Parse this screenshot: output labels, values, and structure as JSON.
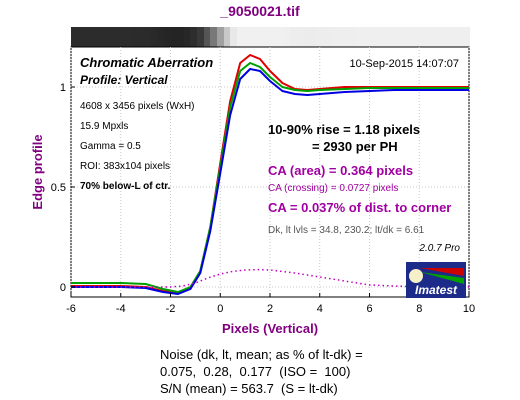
{
  "window_title": "_9050021.tif",
  "header_left": "Chromatic Aberration",
  "header_sub": "Profile: Vertical",
  "date": "10-Sep-2015 14:07:07",
  "info_lines": [
    "4608 x 3456 pixels (WxH)",
    "15.9 Mpxls",
    "Gamma = 0.5",
    "ROI: 383x104 pixels"
  ],
  "region": "70% below-L of ctr.",
  "rise_line1": "10-90% rise = 1.18 pixels",
  "rise_line2": "= 2930 per PH",
  "ca_area": "CA (area) = 0.364 pixels",
  "ca_crossing": "CA (crossing) = 0.0727 pixels",
  "ca_corner": "CA = 0.037% of dist. to corner",
  "levels": "Dk, lt lvls = 34.8, 230.2;  lt/dk = 6.61",
  "version": "2.0.7 Pro",
  "logo_text": "Imatest",
  "noise_lines": [
    "Noise (dk, lt, mean; as % of lt-dk) =",
    "0.075,  0.28,  0.177  (ISO =  100)",
    "S/N (mean) = 563.7  (S = lt-dk)"
  ],
  "colors": {
    "title": "#800080",
    "red": "#e00000",
    "green": "#00a000",
    "blue": "#0000e0",
    "magenta": "#c000c0",
    "rise": "#000000"
  },
  "chart_data": {
    "type": "line",
    "xlabel": "Pixels (Vertical)",
    "ylabel": "Edge profile",
    "xlim": [
      -6,
      10
    ],
    "ylim": [
      -0.05,
      1.2
    ],
    "xticks": [
      -6,
      -4,
      -2,
      0,
      2,
      4,
      6,
      8,
      10
    ],
    "yticks": [
      0,
      0.5,
      1
    ],
    "grid": true,
    "series": [
      {
        "color": "red",
        "x": [
          -6,
          -4,
          -3,
          -2.3,
          -1.7,
          -1.2,
          -0.8,
          -0.4,
          0,
          0.4,
          0.8,
          1.2,
          1.6,
          2.0,
          2.5,
          3,
          3.5,
          4,
          5,
          6,
          7,
          8,
          9,
          10
        ],
        "y": [
          0.005,
          0.005,
          0.0,
          -0.02,
          -0.03,
          -0.005,
          0.08,
          0.3,
          0.62,
          0.93,
          1.12,
          1.16,
          1.14,
          1.08,
          1.02,
          0.99,
          0.985,
          0.99,
          1.0,
          1.0,
          1.0,
          1.0,
          1.0,
          1.0
        ]
      },
      {
        "color": "green",
        "x": [
          -6,
          -4,
          -3,
          -2.3,
          -1.7,
          -1.2,
          -0.8,
          -0.4,
          0,
          0.4,
          0.8,
          1.2,
          1.6,
          2.0,
          2.5,
          3,
          3.5,
          4,
          5,
          6,
          7,
          8,
          9,
          10
        ],
        "y": [
          0.02,
          0.02,
          0.015,
          -0.01,
          -0.025,
          0.0,
          0.08,
          0.3,
          0.6,
          0.9,
          1.08,
          1.12,
          1.1,
          1.05,
          1.0,
          0.985,
          0.98,
          0.985,
          0.99,
          0.995,
          0.995,
          0.995,
          0.995,
          0.995
        ]
      },
      {
        "color": "blue",
        "x": [
          -6,
          -4,
          -3,
          -2.3,
          -1.7,
          -1.2,
          -0.8,
          -0.4,
          0,
          0.4,
          0.8,
          1.2,
          1.6,
          2.0,
          2.5,
          3,
          3.5,
          4,
          5,
          6,
          7,
          8,
          9,
          10
        ],
        "y": [
          0.0,
          0.0,
          -0.005,
          -0.025,
          -0.035,
          -0.01,
          0.07,
          0.28,
          0.57,
          0.86,
          1.04,
          1.09,
          1.08,
          1.03,
          0.98,
          0.965,
          0.96,
          0.965,
          0.975,
          0.98,
          0.985,
          0.985,
          0.985,
          0.985
        ]
      },
      {
        "color": "magenta",
        "dotted": true,
        "x": [
          -6,
          -3,
          -2,
          -1.5,
          -1,
          -0.5,
          0,
          0.5,
          1,
          1.5,
          2,
          3,
          4,
          5,
          6,
          8,
          10
        ],
        "y": [
          0.0,
          0.0,
          0.0,
          0.005,
          0.02,
          0.045,
          0.065,
          0.078,
          0.085,
          0.087,
          0.085,
          0.07,
          0.05,
          0.03,
          0.01,
          0.0,
          0.0
        ]
      }
    ]
  }
}
